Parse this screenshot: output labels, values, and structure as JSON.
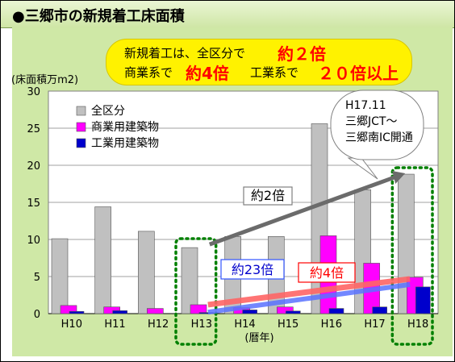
{
  "title": "●三郷市の新規着工床面積",
  "callout": {
    "line1_a": "新規着工は、全区分で",
    "line1_b": "約２倍",
    "line2_a": "商業系で",
    "line2_b": "約4倍",
    "line2_c": "工業系で",
    "line2_d": "２０倍以上"
  },
  "annotation_jct": [
    "H17.11",
    "三郷JCT～",
    "三郷南IC開通"
  ],
  "arrow_labels": {
    "all": "約2倍",
    "industrial": "約23倍",
    "commercial": "約4倍"
  },
  "colors": {
    "all": "#c0c0c0",
    "commercial": "#ff00ff",
    "industrial": "#0000cc",
    "highlight_box": "#008000",
    "background": "#cfe8a6"
  },
  "chart_data": {
    "type": "bar",
    "ylabel": "(床面積万m2)",
    "xlabel": "(暦年)",
    "ylim": [
      0,
      30
    ],
    "yticks": [
      0,
      5,
      10,
      15,
      20,
      25,
      30
    ],
    "categories": [
      "H10",
      "H11",
      "H12",
      "H13",
      "H14",
      "H15",
      "H16",
      "H17",
      "H18"
    ],
    "series": [
      {
        "name": "全区分",
        "values": [
          10.1,
          14.4,
          11.1,
          8.9,
          10.4,
          10.4,
          25.6,
          16.7,
          18.8
        ]
      },
      {
        "name": "商業用建築物",
        "values": [
          1.1,
          0.9,
          0.7,
          1.2,
          0.8,
          0.9,
          10.5,
          6.8,
          4.9
        ]
      },
      {
        "name": "工業用建築物",
        "values": [
          0.3,
          0.4,
          0.0,
          0.15,
          0.5,
          0.35,
          0.7,
          0.9,
          3.6
        ]
      }
    ],
    "highlighted_categories": [
      "H13",
      "H18"
    ],
    "legend_position": "top-left"
  }
}
